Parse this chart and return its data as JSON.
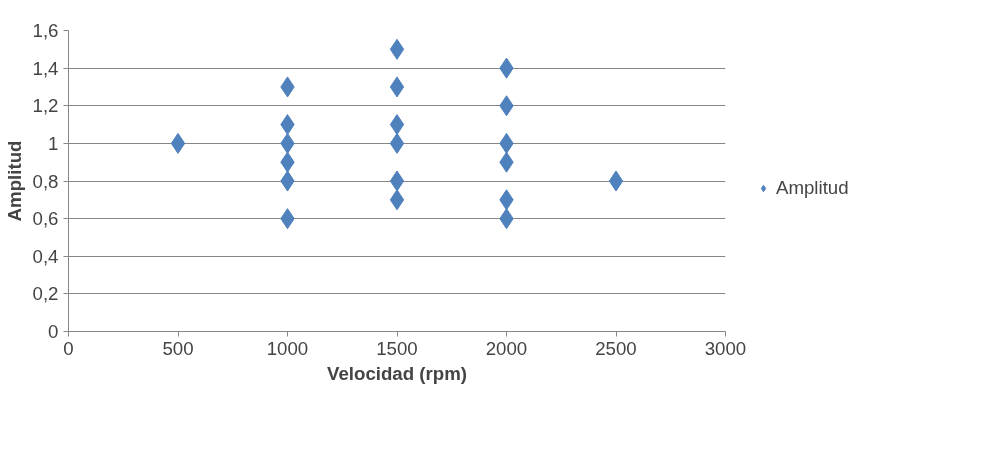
{
  "chart_data": {
    "type": "scatter",
    "xlabel": "Velocidad (rpm)",
    "ylabel": "Amplitud",
    "series": [
      {
        "name": "Amplitud",
        "color": "#4f81bd",
        "x": [
          500,
          1000,
          1000,
          1000,
          1000,
          1000,
          1000,
          1500,
          1500,
          1500,
          1500,
          1500,
          1500,
          2000,
          2000,
          2000,
          2000,
          2000,
          2000,
          2500
        ],
        "values": [
          1.0,
          1.3,
          1.1,
          1.0,
          0.9,
          0.8,
          0.6,
          1.5,
          1.3,
          1.1,
          1.0,
          0.8,
          0.7,
          1.4,
          1.2,
          1.0,
          0.9,
          0.7,
          0.6,
          0.8
        ]
      }
    ],
    "xlim": [
      0,
      3000
    ],
    "xticks": [
      0,
      500,
      1000,
      1500,
      2000,
      2500,
      3000
    ],
    "ylim": [
      0,
      1.6
    ],
    "yticks": [
      0,
      {
        "value": 0.2,
        "label": "0,2"
      },
      {
        "value": 0.4,
        "label": "0,4"
      },
      {
        "value": 0.6,
        "label": "0,6"
      },
      {
        "value": 0.8,
        "label": "0,8"
      },
      1,
      {
        "value": 1.2,
        "label": "1,2"
      },
      {
        "value": 1.4,
        "label": "1,4"
      },
      {
        "value": 1.6,
        "label": "1,6"
      }
    ],
    "grid": "y",
    "legend": "right",
    "marker": "diamond"
  }
}
